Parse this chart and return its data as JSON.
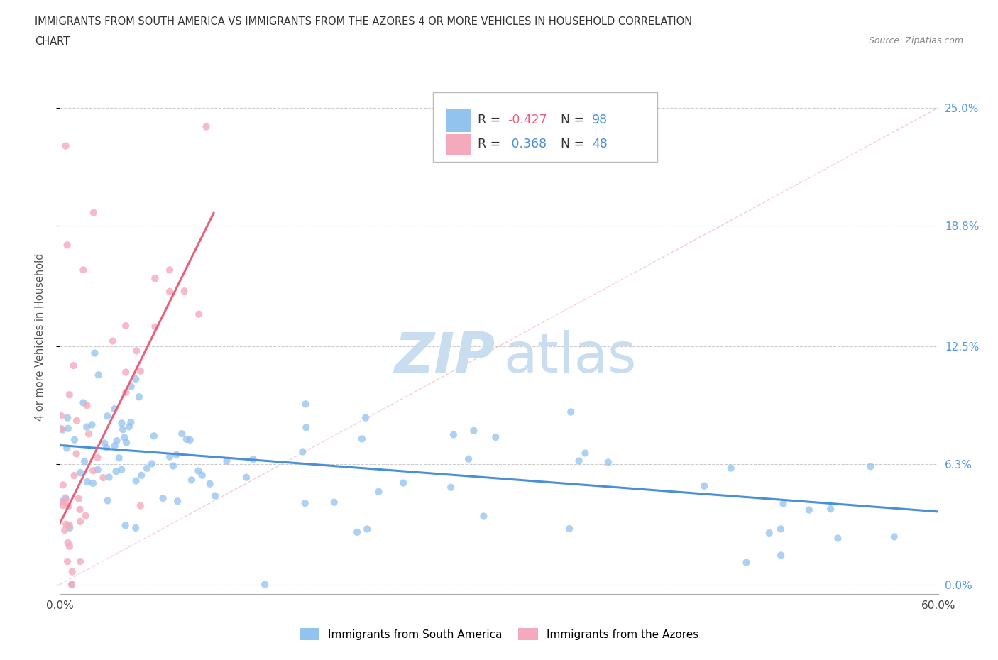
{
  "title_line1": "IMMIGRANTS FROM SOUTH AMERICA VS IMMIGRANTS FROM THE AZORES 4 OR MORE VEHICLES IN HOUSEHOLD CORRELATION",
  "title_line2": "CHART",
  "source": "Source: ZipAtlas.com",
  "ylabel": "4 or more Vehicles in Household",
  "xlim": [
    0.0,
    0.6
  ],
  "ylim": [
    -0.005,
    0.265
  ],
  "xtick_positions": [
    0.0,
    0.1,
    0.2,
    0.3,
    0.4,
    0.5,
    0.6
  ],
  "xtick_labels": [
    "0.0%",
    "",
    "",
    "",
    "",
    "",
    "60.0%"
  ],
  "ytick_positions": [
    0.0,
    0.063,
    0.125,
    0.188,
    0.25
  ],
  "ytick_labels_right": [
    "0.0%",
    "6.3%",
    "12.5%",
    "18.8%",
    "25.0%"
  ],
  "color_blue": "#92C2EE",
  "color_pink": "#F4AABC",
  "trend_blue": "#4A90D9",
  "trend_pink": "#E8607A",
  "diag_color": "#F0B8C0",
  "R_blue": -0.427,
  "N_blue": 98,
  "R_pink": 0.368,
  "N_pink": 48,
  "background": "#FFFFFF",
  "grid_color": "#CCCCCC",
  "blue_slope": -0.058,
  "blue_intercept": 0.073,
  "pink_slope": 1.55,
  "pink_intercept": 0.032,
  "pink_trend_x_end": 0.105,
  "watermark_color": "#C8DDEF"
}
